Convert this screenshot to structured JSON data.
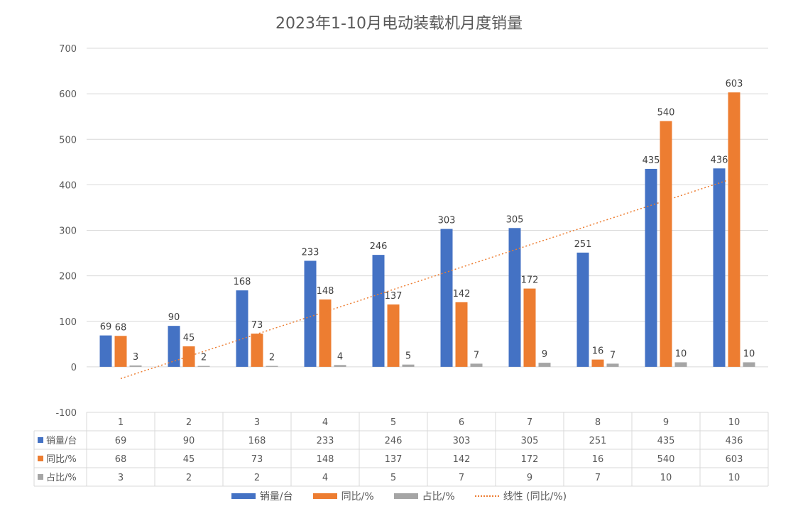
{
  "chart_data": {
    "type": "bar",
    "title": "2023年1-10月电动装载机月度销量",
    "categories": [
      "1",
      "2",
      "3",
      "4",
      "5",
      "6",
      "7",
      "8",
      "9",
      "10"
    ],
    "series": [
      {
        "name": "销量/台",
        "color": "#4472C4",
        "values": [
          69,
          90,
          168,
          233,
          246,
          303,
          305,
          251,
          435,
          436
        ]
      },
      {
        "name": "同比/%",
        "color": "#ED7D31",
        "values": [
          68,
          45,
          73,
          148,
          137,
          142,
          172,
          16,
          540,
          603
        ]
      },
      {
        "name": "占比/%",
        "color": "#A5A5A5",
        "values": [
          3,
          2,
          2,
          4,
          5,
          7,
          9,
          7,
          10,
          10
        ]
      }
    ],
    "trendline": {
      "name": "线性 (同比/%)",
      "color": "#ED7D31",
      "style": "dotted",
      "of_series": "同比/%"
    },
    "ylim": [
      -100,
      700
    ],
    "yticks": [
      -100,
      0,
      100,
      200,
      300,
      400,
      500,
      600,
      700
    ],
    "grid": true,
    "data_table": true,
    "legend_position": "bottom"
  }
}
